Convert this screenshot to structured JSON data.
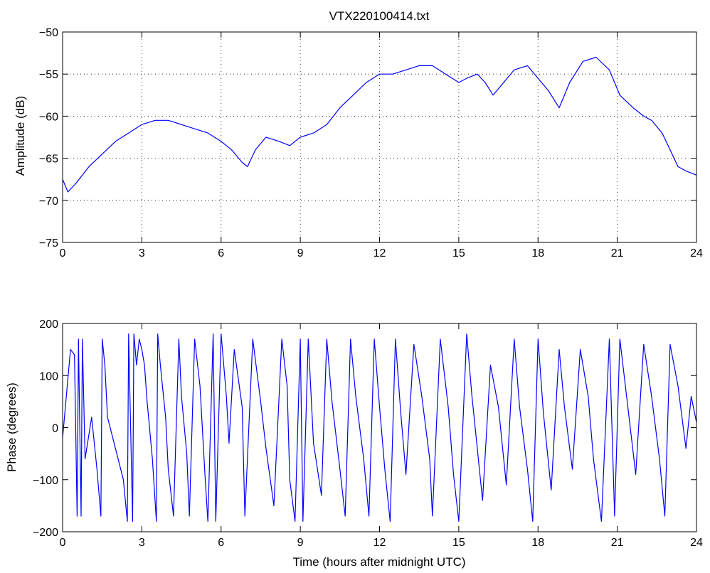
{
  "chart_data": [
    {
      "type": "line",
      "title": "VTX220100414.txt",
      "xlabel": "",
      "ylabel": "Amplitude (dB)",
      "xlim": [
        0,
        24
      ],
      "ylim": [
        -75,
        -50
      ],
      "xticks": [
        "0",
        "3",
        "6",
        "9",
        "12",
        "15",
        "18",
        "21",
        "24"
      ],
      "yticks": [
        "-75",
        "-70",
        "-65",
        "-60",
        "-55",
        "-50"
      ],
      "grid": true,
      "line_color": "#0000ff",
      "series": [
        {
          "x": [
            0,
            0.2,
            0.5,
            1,
            1.5,
            2,
            2.5,
            3,
            3.5,
            4,
            4.5,
            5,
            5.5,
            6,
            6.4,
            6.8,
            7,
            7.3,
            7.7,
            8.2,
            8.6,
            9,
            9.5,
            10,
            10.5,
            11,
            11.5,
            12,
            12.5,
            13,
            13.5,
            14,
            14.5,
            15,
            15.3,
            15.7,
            16,
            16.3,
            16.7,
            17.1,
            17.6,
            18,
            18.4,
            18.8,
            19.2,
            19.7,
            20.2,
            20.7,
            21.1,
            21.6,
            22,
            22.3,
            22.7,
            23,
            23.3,
            23.6,
            24
          ],
          "y": [
            -67.5,
            -69,
            -68,
            -66,
            -64.5,
            -63,
            -62,
            -61,
            -60.5,
            -60.5,
            -61,
            -61.5,
            -62,
            -63,
            -64,
            -65.5,
            -66,
            -64,
            -62.5,
            -63,
            -63.5,
            -62.5,
            -62,
            -61,
            -59,
            -57.5,
            -56,
            -55,
            -55,
            -54.5,
            -54,
            -54,
            -55,
            -56,
            -55.5,
            -55,
            -56,
            -57.5,
            -56,
            -54.5,
            -54,
            -55.5,
            -57,
            -59,
            -56,
            -53.5,
            -53,
            -54.5,
            -57.5,
            -59,
            -60,
            -60.5,
            -62,
            -64,
            -66,
            -66.5,
            -67
          ]
        }
      ]
    },
    {
      "type": "line",
      "title": "",
      "xlabel": "Time (hours after midnight UTC)",
      "ylabel": "Phase (degrees)",
      "xlim": [
        0,
        24
      ],
      "ylim": [
        -200,
        200
      ],
      "xticks": [
        "0",
        "3",
        "6",
        "9",
        "12",
        "15",
        "18",
        "21",
        "24"
      ],
      "yticks": [
        "-200",
        "-100",
        "0",
        "100",
        "200"
      ],
      "grid": false,
      "line_color": "#0000ff",
      "series": [
        {
          "x": [
            0,
            0.3,
            0.45,
            0.55,
            0.6,
            0.7,
            0.75,
            0.85,
            1.1,
            1.3,
            1.45,
            1.5,
            1.6,
            1.7,
            2.0,
            2.3,
            2.45,
            2.5,
            2.65,
            2.7,
            2.8,
            2.9,
            3.0,
            3.1,
            3.2,
            3.4,
            3.55,
            3.6,
            3.7,
            3.9,
            4.0,
            4.2,
            4.4,
            4.5,
            4.7,
            4.8,
            5.0,
            5.2,
            5.4,
            5.5,
            5.7,
            5.8,
            6.0,
            6.2,
            6.3,
            6.5,
            6.8,
            6.9,
            7.2,
            7.5,
            7.7,
            8.0,
            8.3,
            8.5,
            8.6,
            8.8,
            9.0,
            9.1,
            9.3,
            9.5,
            9.8,
            10.0,
            10.2,
            10.5,
            10.7,
            10.9,
            11.1,
            11.4,
            11.6,
            11.8,
            12.0,
            12.2,
            12.4,
            12.6,
            12.8,
            13.0,
            13.3,
            13.6,
            13.9,
            14.0,
            14.3,
            14.6,
            14.8,
            15.0,
            15.3,
            15.5,
            15.7,
            15.9,
            16.2,
            16.5,
            16.8,
            17.1,
            17.3,
            17.6,
            17.8,
            18.0,
            18.2,
            18.5,
            18.8,
            19.0,
            19.3,
            19.6,
            19.9,
            20.1,
            20.4,
            20.7,
            20.9,
            21.1,
            21.4,
            21.7,
            22.0,
            22.3,
            22.6,
            22.8,
            23.0,
            23.3,
            23.6,
            23.8,
            24.0
          ],
          "y": [
            -20,
            150,
            140,
            -170,
            170,
            -170,
            170,
            -60,
            20,
            -80,
            -170,
            170,
            120,
            20,
            -40,
            -100,
            -180,
            180,
            -180,
            180,
            120,
            170,
            150,
            120,
            50,
            -60,
            -180,
            180,
            120,
            20,
            -80,
            -170,
            170,
            60,
            -50,
            -170,
            170,
            80,
            -100,
            -180,
            180,
            -180,
            180,
            60,
            -30,
            150,
            40,
            -170,
            170,
            50,
            -40,
            -150,
            170,
            80,
            -100,
            -180,
            170,
            -180,
            170,
            -30,
            -130,
            170,
            50,
            -80,
            -170,
            170,
            60,
            -60,
            -170,
            170,
            40,
            -80,
            -180,
            170,
            30,
            -90,
            160,
            60,
            -60,
            -170,
            170,
            40,
            -90,
            -180,
            180,
            60,
            -40,
            -140,
            120,
            40,
            -110,
            170,
            40,
            -80,
            -180,
            170,
            30,
            -120,
            150,
            40,
            -80,
            150,
            60,
            -60,
            -180,
            170,
            -170,
            170,
            40,
            -90,
            160,
            60,
            -60,
            -170,
            160,
            80,
            -40,
            60,
            10
          ]
        }
      ]
    }
  ]
}
